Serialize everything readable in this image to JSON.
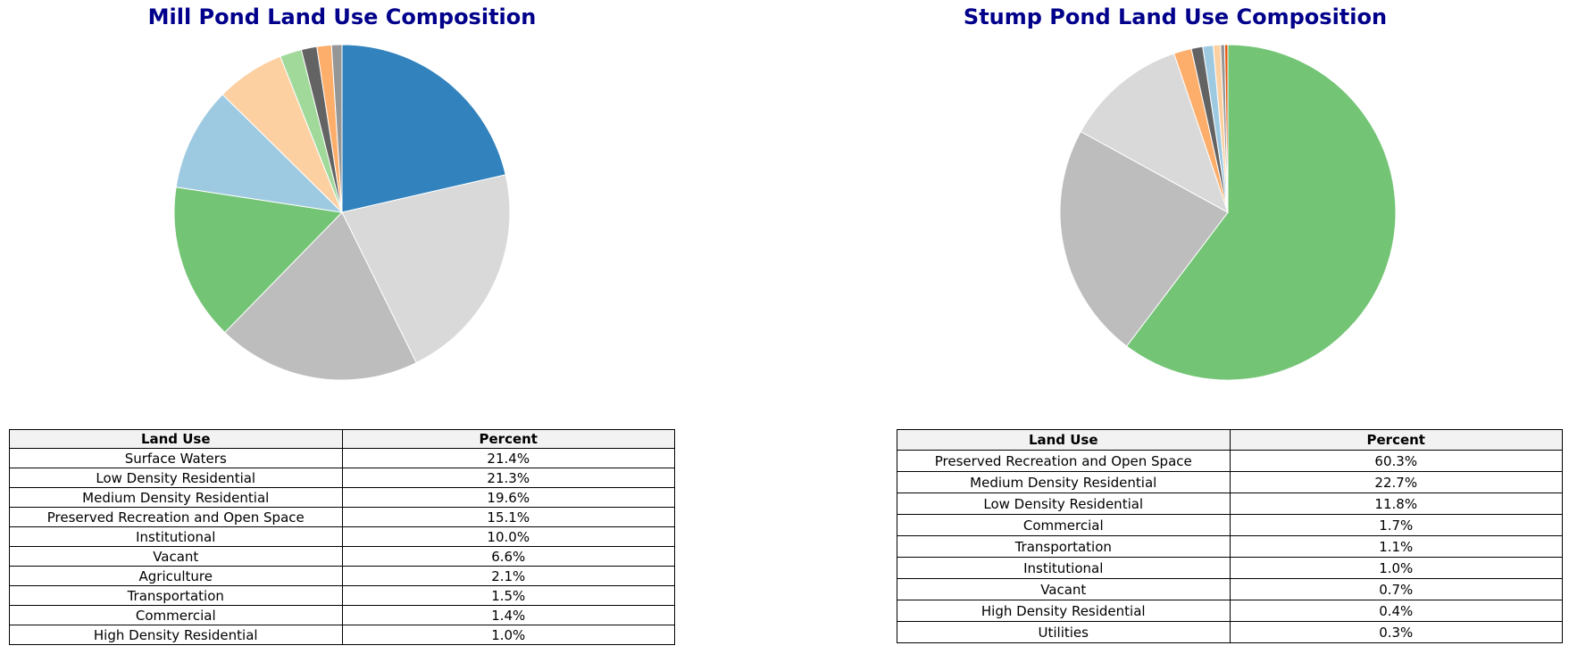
{
  "colors": {
    "title": "#00008b",
    "header_bg": "#f2f2f2"
  },
  "chart_data": [
    {
      "type": "pie",
      "title": "Mill Pond Land Use Composition",
      "table_headers": [
        "Land Use",
        "Percent"
      ],
      "slices": [
        {
          "label": "Surface Waters",
          "value": 21.4,
          "display": "21.4%",
          "color": "#3182bd"
        },
        {
          "label": "Low Density Residential",
          "value": 21.3,
          "display": "21.3%",
          "color": "#d9d9d9"
        },
        {
          "label": "Medium Density Residential",
          "value": 19.6,
          "display": "19.6%",
          "color": "#bdbdbd"
        },
        {
          "label": "Preserved Recreation and Open Space",
          "value": 15.1,
          "display": "15.1%",
          "color": "#74c476"
        },
        {
          "label": "Institutional",
          "value": 10.0,
          "display": "10.0%",
          "color": "#9ecae1"
        },
        {
          "label": "Vacant",
          "value": 6.6,
          "display": "6.6%",
          "color": "#fdd0a2"
        },
        {
          "label": "Agriculture",
          "value": 2.1,
          "display": "2.1%",
          "color": "#a1d99b"
        },
        {
          "label": "Transportation",
          "value": 1.5,
          "display": "1.5%",
          "color": "#636363"
        },
        {
          "label": "Commercial",
          "value": 1.4,
          "display": "1.4%",
          "color": "#fdae6b"
        },
        {
          "label": "High Density Residential",
          "value": 1.0,
          "display": "1.0%",
          "color": "#969696"
        }
      ]
    },
    {
      "type": "pie",
      "title": "Stump Pond Land Use Composition",
      "table_headers": [
        "Land Use",
        "Percent"
      ],
      "slices": [
        {
          "label": "Preserved Recreation and Open Space",
          "value": 60.3,
          "display": "60.3%",
          "color": "#74c476"
        },
        {
          "label": "Medium Density Residential",
          "value": 22.7,
          "display": "22.7%",
          "color": "#bdbdbd"
        },
        {
          "label": "Low Density Residential",
          "value": 11.8,
          "display": "11.8%",
          "color": "#d9d9d9"
        },
        {
          "label": "Commercial",
          "value": 1.7,
          "display": "1.7%",
          "color": "#fdae6b"
        },
        {
          "label": "Transportation",
          "value": 1.1,
          "display": "1.1%",
          "color": "#636363"
        },
        {
          "label": "Institutional",
          "value": 1.0,
          "display": "1.0%",
          "color": "#9ecae1"
        },
        {
          "label": "Vacant",
          "value": 0.7,
          "display": "0.7%",
          "color": "#fdd0a2"
        },
        {
          "label": "High Density Residential",
          "value": 0.4,
          "display": "0.4%",
          "color": "#969696"
        },
        {
          "label": "Utilities",
          "value": 0.3,
          "display": "0.3%",
          "color": "#e6550d"
        }
      ]
    }
  ]
}
